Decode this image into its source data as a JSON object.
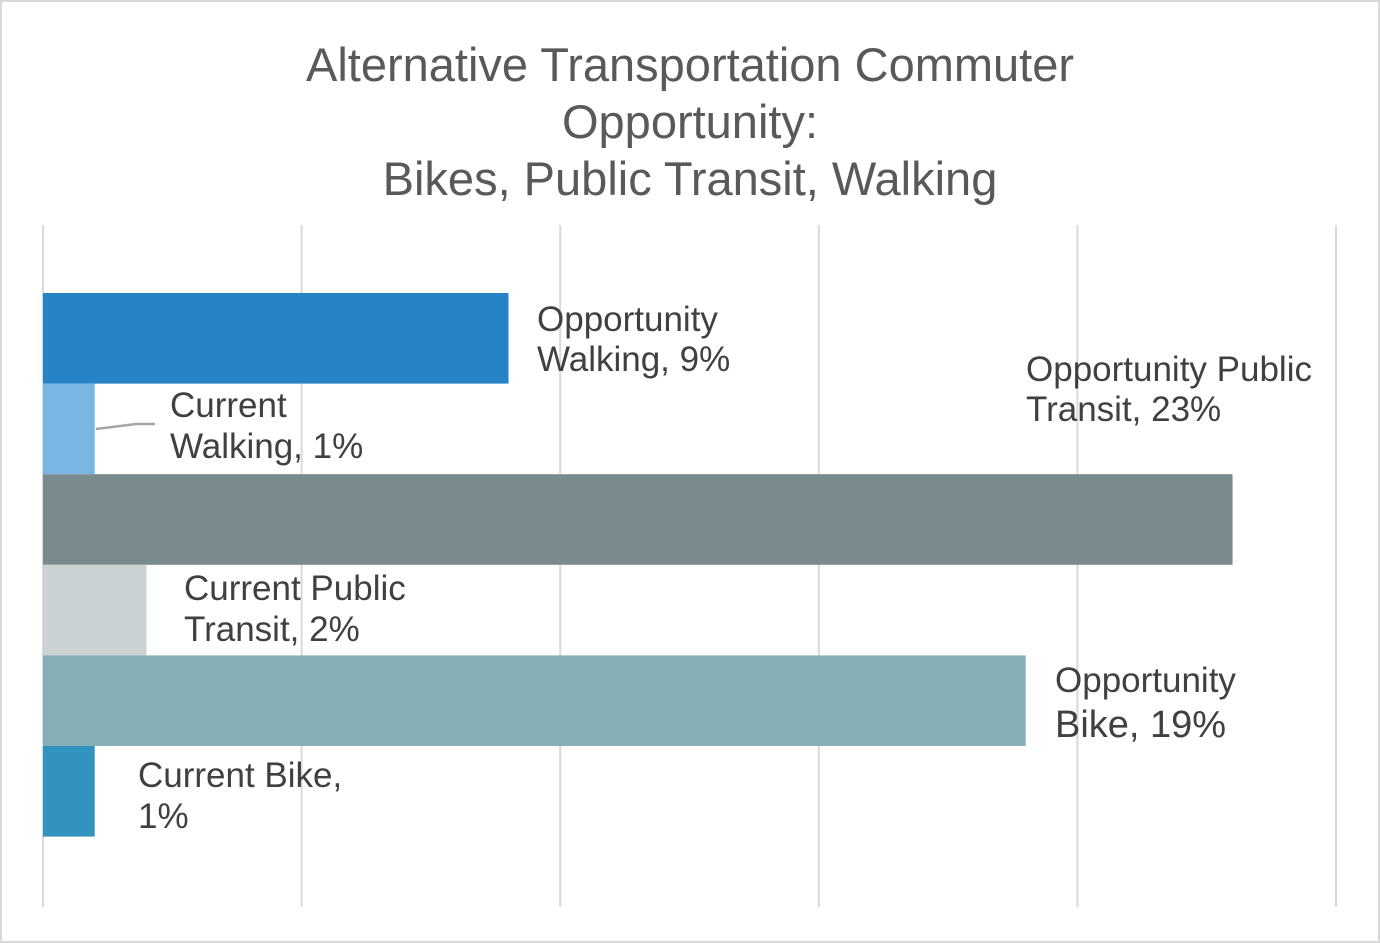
{
  "chart_data": {
    "type": "bar",
    "orientation": "horizontal",
    "title": "Alternative Transportation Commuter\nOpportunity:\nBikes, Public Transit, Walking",
    "xlabel": "",
    "ylabel": "",
    "xlim": [
      0,
      25
    ],
    "grid": true,
    "legend": "none",
    "x_tick_labels_shown": false,
    "categories": [
      "Opportunity Walking",
      "Current Walking",
      "Opportunity Public Transit",
      "Current Public Transit",
      "Opportunity Bike",
      "Current Bike"
    ],
    "values": [
      9,
      1,
      23,
      2,
      19,
      1
    ],
    "unit": "%",
    "colors": [
      "#2782c6",
      "#79b6e4",
      "#7a8b8e",
      "#cbd2d4",
      "#86aeb7",
      "#3393bf"
    ],
    "data_labels": [
      [
        "Opportunity",
        "Walking, 9%"
      ],
      [
        "Current",
        "Walking, 1%"
      ],
      [
        "Opportunity Public",
        "Transit, 23%"
      ],
      [
        "Current Public",
        "Transit, 2%"
      ],
      [
        "Opportunity",
        "Bike, 19%"
      ],
      [
        "Current Bike,",
        "1%"
      ]
    ]
  }
}
